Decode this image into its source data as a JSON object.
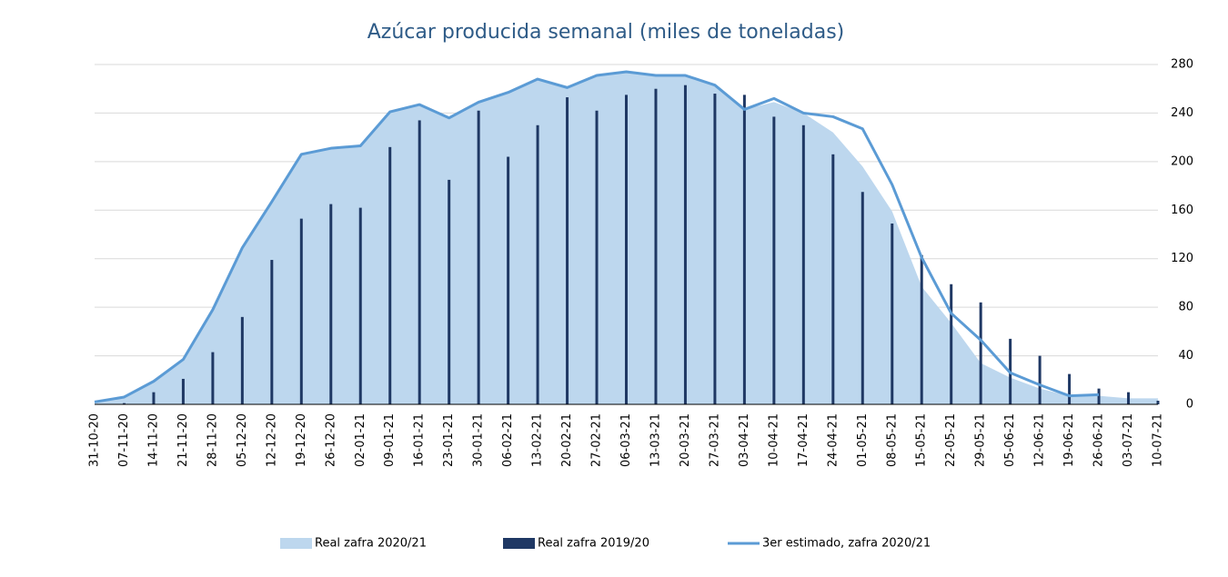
{
  "chart_data": {
    "type": "combo",
    "title": "Azúcar producida semanal (miles de toneladas)",
    "categories": [
      "31-10-20",
      "07-11-20",
      "14-11-20",
      "21-11-20",
      "28-11-20",
      "05-12-20",
      "12-12-20",
      "19-12-20",
      "26-12-20",
      "02-01-21",
      "09-01-21",
      "16-01-21",
      "23-01-21",
      "30-01-21",
      "06-02-21",
      "13-02-21",
      "20-02-21",
      "27-02-21",
      "06-03-21",
      "13-03-21",
      "20-03-21",
      "27-03-21",
      "03-04-21",
      "10-04-21",
      "17-04-21",
      "24-04-21",
      "01-05-21",
      "08-05-21",
      "15-05-21",
      "22-05-21",
      "29-05-21",
      "05-06-21",
      "12-06-21",
      "19-06-21",
      "26-06-21",
      "03-07-21",
      "10-07-21"
    ],
    "series": [
      {
        "name": "Real zafra 2020/21",
        "type": "area",
        "color": "#bdd7ee",
        "values": [
          2,
          6,
          19,
          37,
          78,
          129,
          167,
          206,
          211,
          213,
          241,
          247,
          236,
          249,
          257,
          268,
          261,
          271,
          274,
          271,
          271,
          263,
          243,
          249,
          240,
          224,
          196,
          159,
          97,
          67,
          34,
          22,
          13,
          7,
          7,
          5,
          5
        ]
      },
      {
        "name": "Real zafra 2019/20",
        "type": "bar",
        "color": "#1f3864",
        "values": [
          null,
          1,
          10,
          21,
          43,
          72,
          119,
          153,
          165,
          162,
          212,
          234,
          185,
          242,
          204,
          230,
          253,
          242,
          255,
          260,
          263,
          256,
          255,
          237,
          230,
          206,
          175,
          149,
          123,
          99,
          84,
          54,
          40,
          25,
          13,
          10,
          3
        ]
      },
      {
        "name": "3er estimado, zafra 2020/21",
        "type": "line",
        "color": "#5b9bd5",
        "values": [
          2,
          6,
          19,
          37,
          78,
          129,
          167,
          206,
          211,
          213,
          241,
          247,
          236,
          249,
          257,
          268,
          261,
          271,
          274,
          271,
          271,
          263,
          243,
          252,
          240,
          237,
          227,
          181,
          121,
          75,
          53,
          26,
          16,
          7,
          8,
          null,
          null
        ]
      }
    ],
    "ylim": [
      0,
      280
    ],
    "yticks": [
      0,
      40,
      80,
      120,
      160,
      200,
      240,
      280
    ],
    "grid": true,
    "legend": "bottom"
  }
}
